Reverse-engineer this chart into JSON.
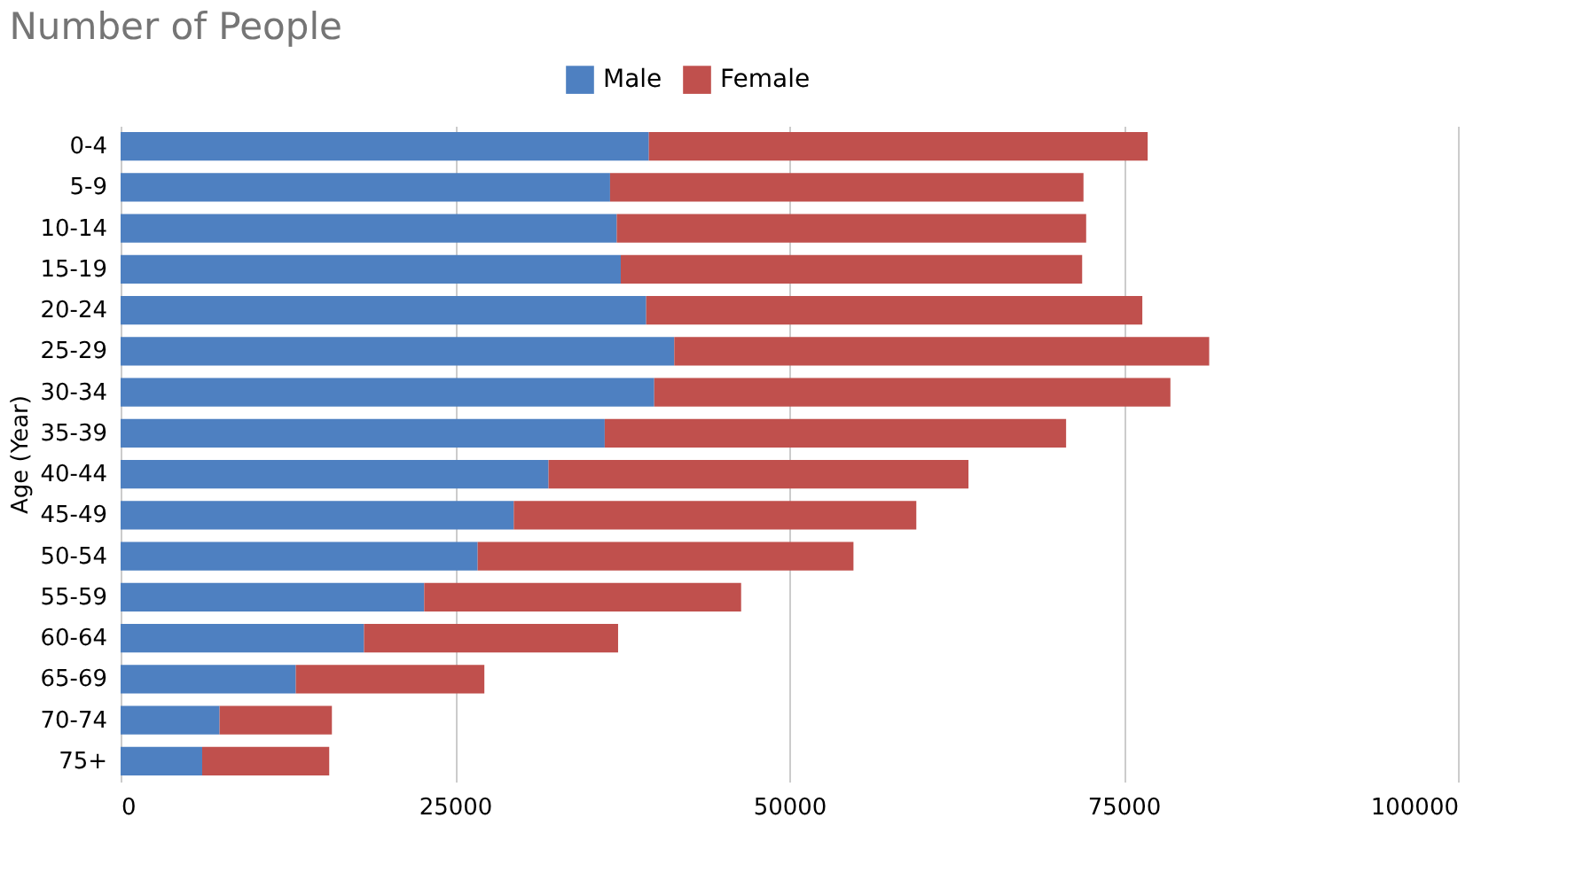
{
  "chart_data": {
    "type": "bar",
    "title": "Number of People",
    "ylabel": "Age (Year)",
    "orientation": "horizontal",
    "stacked": true,
    "legend": "top",
    "grid": "x",
    "categories": [
      "0-4",
      "5-9",
      "10-14",
      "15-19",
      "20-24",
      "25-29",
      "30-34",
      "35-39",
      "40-44",
      "45-49",
      "50-54",
      "55-59",
      "60-64",
      "65-69",
      "70-74",
      "75+"
    ],
    "series": [
      {
        "name": "Male",
        "color": "#4e80c1",
        "values": [
          39500,
          36600,
          37100,
          37400,
          39300,
          41400,
          39900,
          36200,
          32000,
          29400,
          26700,
          22700,
          18200,
          13100,
          7400,
          6100
        ]
      },
      {
        "name": "Female",
        "color": "#c0504d",
        "values": [
          37300,
          35400,
          35100,
          34500,
          37100,
          40000,
          38600,
          34500,
          31400,
          30100,
          28100,
          23700,
          19000,
          14100,
          8400,
          9500
        ]
      }
    ],
    "xlim": [
      0,
      100000
    ],
    "xticks": [
      0,
      25000,
      50000,
      75000,
      100000
    ]
  }
}
